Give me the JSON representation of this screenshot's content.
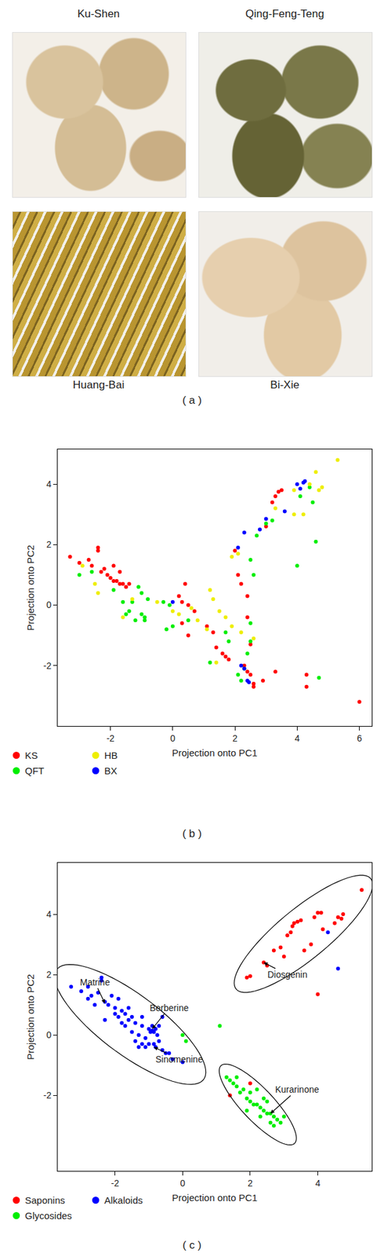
{
  "figure": {
    "photos": [
      {
        "label": "Ku-Shen"
      },
      {
        "label": "Qing-Feng-Teng"
      },
      {
        "label": "Huang-Bai"
      },
      {
        "label": "Bi-Xie"
      }
    ],
    "panel_labels": [
      "( a )",
      "( b )",
      "( c )"
    ]
  },
  "chart_data": [
    {
      "type": "scatter",
      "x_label": "Projection onto PC1",
      "y_label": "Projection onto PC2",
      "xlim": [
        -3.7,
        6.4
      ],
      "ylim": [
        -4.0,
        5.15
      ],
      "xticks": [
        -2,
        0,
        2,
        4,
        6
      ],
      "yticks": [
        -2,
        0,
        2,
        4
      ],
      "grid": false,
      "legend": "bottom",
      "marker": "circle",
      "series": [
        {
          "name": "KS",
          "color": "#ff0000",
          "points": [
            [
              -3.3,
              1.6
            ],
            [
              -3.0,
              1.4
            ],
            [
              -2.7,
              1.5
            ],
            [
              -2.6,
              1.3
            ],
            [
              -2.4,
              1.9
            ],
            [
              -2.4,
              1.8
            ],
            [
              -2.2,
              1.2
            ],
            [
              -2.1,
              1.0
            ],
            [
              -2.0,
              0.9
            ],
            [
              -1.9,
              0.8
            ],
            [
              -1.8,
              0.8
            ],
            [
              -1.7,
              0.7
            ],
            [
              -1.6,
              0.7
            ],
            [
              -1.5,
              0.6
            ],
            [
              -1.9,
              1.3
            ],
            [
              -1.7,
              1.1
            ],
            [
              -1.4,
              0.7
            ],
            [
              -2.3,
              1.1
            ],
            [
              0.4,
              0.7
            ],
            [
              0.2,
              0.3
            ],
            [
              0.5,
              0.0
            ],
            [
              0.7,
              -0.2
            ],
            [
              0.3,
              -0.6
            ],
            [
              0.5,
              -1.0
            ],
            [
              1.1,
              -0.7
            ],
            [
              1.3,
              -0.9
            ],
            [
              1.4,
              -1.4
            ],
            [
              1.6,
              -1.6
            ],
            [
              1.7,
              -1.7
            ],
            [
              1.8,
              -1.8
            ],
            [
              2.1,
              1.0
            ],
            [
              2.2,
              0.7
            ],
            [
              2.4,
              0.3
            ],
            [
              2.4,
              -0.4
            ],
            [
              2.5,
              -1.3
            ],
            [
              2.3,
              -2.0
            ],
            [
              2.4,
              -2.2
            ],
            [
              2.5,
              -2.3
            ],
            [
              2.6,
              -2.6
            ],
            [
              2.6,
              -2.7
            ],
            [
              2.9,
              -2.5
            ],
            [
              3.3,
              -2.2
            ],
            [
              4.3,
              -2.3
            ],
            [
              4.3,
              -2.7
            ],
            [
              6.0,
              -3.2
            ],
            [
              3.0,
              2.6
            ],
            [
              3.2,
              3.4
            ],
            [
              3.3,
              3.6
            ],
            [
              3.4,
              3.75
            ],
            [
              3.5,
              3.8
            ],
            [
              2.0,
              1.8
            ],
            [
              0.3,
              0.1
            ]
          ]
        },
        {
          "name": "QFT",
          "color": "#00ee00",
          "points": [
            [
              -3.0,
              1.0
            ],
            [
              -2.6,
              1.1
            ],
            [
              -1.9,
              0.5
            ],
            [
              -1.6,
              0.1
            ],
            [
              -1.5,
              -0.3
            ],
            [
              -1.3,
              0.1
            ],
            [
              -1.1,
              0.6
            ],
            [
              -1.0,
              0.4
            ],
            [
              -1.0,
              -0.3
            ],
            [
              -0.9,
              -0.4
            ],
            [
              -1.2,
              -0.5
            ],
            [
              -0.9,
              -0.5
            ],
            [
              -1.4,
              -0.2
            ],
            [
              -0.3,
              0.1
            ],
            [
              -0.2,
              -0.8
            ],
            [
              0.0,
              -0.7
            ],
            [
              -0.1,
              0.0
            ],
            [
              0.5,
              -0.5
            ],
            [
              1.2,
              -1.9
            ],
            [
              1.7,
              -0.9
            ],
            [
              1.8,
              -1.2
            ],
            [
              2.1,
              -2.3
            ],
            [
              2.3,
              -2.1
            ],
            [
              2.4,
              -1.6
            ],
            [
              2.5,
              -1.2
            ],
            [
              2.5,
              -0.6
            ],
            [
              2.6,
              1.0
            ],
            [
              2.5,
              1.5
            ],
            [
              2.7,
              2.3
            ],
            [
              3.0,
              2.7
            ],
            [
              3.2,
              2.8
            ],
            [
              4.0,
              1.3
            ],
            [
              4.1,
              3.6
            ],
            [
              4.4,
              3.9
            ],
            [
              4.5,
              3.4
            ],
            [
              4.6,
              2.1
            ],
            [
              4.7,
              -2.4
            ],
            [
              2.2,
              -2.5
            ],
            [
              -0.8,
              0.2
            ]
          ]
        },
        {
          "name": "HB",
          "color": "#eeee00",
          "points": [
            [
              -2.9,
              1.3
            ],
            [
              -2.5,
              0.7
            ],
            [
              -2.4,
              0.4
            ],
            [
              -1.6,
              -0.4
            ],
            [
              -1.3,
              0.2
            ],
            [
              -0.5,
              0.1
            ],
            [
              0.0,
              -0.2
            ],
            [
              0.2,
              -0.3
            ],
            [
              0.6,
              -0.1
            ],
            [
              0.8,
              -0.5
            ],
            [
              1.2,
              0.5
            ],
            [
              1.3,
              0.2
            ],
            [
              1.5,
              -0.2
            ],
            [
              1.7,
              -0.4
            ],
            [
              1.9,
              -0.7
            ],
            [
              2.2,
              -0.9
            ],
            [
              2.6,
              -1.1
            ],
            [
              1.4,
              -1.9
            ],
            [
              1.9,
              1.6
            ],
            [
              2.1,
              1.7
            ],
            [
              3.3,
              3.2
            ],
            [
              3.9,
              3.0
            ],
            [
              4.2,
              3.0
            ],
            [
              4.4,
              4.0
            ],
            [
              4.7,
              3.8
            ],
            [
              4.8,
              3.9
            ],
            [
              4.6,
              4.4
            ],
            [
              5.3,
              4.8
            ],
            [
              3.9,
              3.8
            ],
            [
              1.1,
              -0.8
            ]
          ]
        },
        {
          "name": "BX",
          "color": "#0000ff",
          "points": [
            [
              0.0,
              0.1
            ],
            [
              2.1,
              1.9
            ],
            [
              2.3,
              2.4
            ],
            [
              2.8,
              2.5
            ],
            [
              3.0,
              2.85
            ],
            [
              3.6,
              3.1
            ],
            [
              4.0,
              4.0
            ],
            [
              4.1,
              3.85
            ],
            [
              4.2,
              4.05
            ],
            [
              4.25,
              4.1
            ],
            [
              2.2,
              -2.0
            ],
            [
              2.3,
              -2.1
            ],
            [
              2.4,
              -2.5
            ],
            [
              2.45,
              -2.55
            ]
          ]
        }
      ]
    },
    {
      "type": "scatter",
      "x_label": "Projection onto PC1",
      "y_label": "Projection onto PC2",
      "xlim": [
        -3.7,
        5.6
      ],
      "ylim": [
        -4.5,
        5.7
      ],
      "xticks": [
        -2,
        0,
        2,
        4
      ],
      "yticks": [
        -2,
        0,
        2,
        4
      ],
      "grid": false,
      "legend": "bottom",
      "marker": "circle",
      "series": [
        {
          "name": "Saponins",
          "color": "#ff0000",
          "points": [
            [
              1.9,
              1.9
            ],
            [
              2.0,
              1.95
            ],
            [
              2.4,
              2.4
            ],
            [
              2.5,
              2.3
            ],
            [
              2.7,
              2.8
            ],
            [
              2.9,
              2.9
            ],
            [
              3.0,
              2.6
            ],
            [
              3.1,
              3.3
            ],
            [
              3.2,
              3.4
            ],
            [
              3.25,
              3.6
            ],
            [
              3.3,
              3.7
            ],
            [
              3.4,
              3.75
            ],
            [
              3.5,
              3.8
            ],
            [
              3.6,
              2.8
            ],
            [
              3.8,
              3.0
            ],
            [
              3.9,
              3.9
            ],
            [
              4.0,
              4.05
            ],
            [
              4.1,
              4.05
            ],
            [
              4.15,
              3.5
            ],
            [
              4.5,
              3.7
            ],
            [
              4.6,
              3.9
            ],
            [
              4.7,
              3.85
            ],
            [
              4.75,
              4.0
            ],
            [
              5.3,
              4.8
            ],
            [
              4.0,
              1.35
            ],
            [
              1.4,
              -2.0
            ],
            [
              2.0,
              -1.6
            ]
          ]
        },
        {
          "name": "Glycosides",
          "color": "#00ee00",
          "points": [
            [
              0.0,
              0.0
            ],
            [
              0.1,
              -0.2
            ],
            [
              1.1,
              0.3
            ],
            [
              1.4,
              -1.5
            ],
            [
              1.5,
              -1.6
            ],
            [
              1.6,
              -1.7
            ],
            [
              1.6,
              -1.4
            ],
            [
              1.7,
              -1.9
            ],
            [
              1.8,
              -1.8
            ],
            [
              1.9,
              -2.1
            ],
            [
              2.0,
              -2.2
            ],
            [
              2.0,
              -1.9
            ],
            [
              2.1,
              -2.3
            ],
            [
              2.2,
              -2.3
            ],
            [
              2.2,
              -1.8
            ],
            [
              2.3,
              -2.4
            ],
            [
              2.3,
              -2.7
            ],
            [
              2.4,
              -2.5
            ],
            [
              2.4,
              -2.1
            ],
            [
              2.5,
              -2.6
            ],
            [
              2.5,
              -2.2
            ],
            [
              2.6,
              -2.6
            ],
            [
              2.6,
              -2.9
            ],
            [
              2.7,
              -2.7
            ],
            [
              2.7,
              -3.0
            ],
            [
              2.8,
              -2.8
            ],
            [
              2.9,
              -2.9
            ],
            [
              3.0,
              -2.7
            ],
            [
              1.9,
              -2.5
            ],
            [
              1.3,
              -1.4
            ]
          ]
        },
        {
          "name": "Alkaloids",
          "color": "#0000ff",
          "points": [
            [
              -3.3,
              1.6
            ],
            [
              -3.0,
              1.45
            ],
            [
              -2.8,
              1.2
            ],
            [
              -2.7,
              1.3
            ],
            [
              -2.5,
              1.4
            ],
            [
              -2.4,
              1.9
            ],
            [
              -2.4,
              1.8
            ],
            [
              -2.3,
              1.1
            ],
            [
              -2.2,
              1.0
            ],
            [
              -2.1,
              1.3
            ],
            [
              -2.0,
              0.9
            ],
            [
              -2.0,
              0.7
            ],
            [
              -1.9,
              1.2
            ],
            [
              -1.9,
              0.6
            ],
            [
              -1.8,
              0.8
            ],
            [
              -1.8,
              0.4
            ],
            [
              -1.7,
              0.7
            ],
            [
              -1.7,
              0.3
            ],
            [
              -1.6,
              0.9
            ],
            [
              -1.6,
              0.5
            ],
            [
              -1.5,
              0.6
            ],
            [
              -1.5,
              0.1
            ],
            [
              -1.4,
              0.4
            ],
            [
              -1.4,
              -0.2
            ],
            [
              -1.3,
              0.0
            ],
            [
              -1.3,
              -0.4
            ],
            [
              -1.2,
              -0.3
            ],
            [
              -1.2,
              0.3
            ],
            [
              -1.1,
              -0.1
            ],
            [
              -1.1,
              -0.4
            ],
            [
              -1.0,
              -0.3
            ],
            [
              -1.0,
              0.2
            ],
            [
              -0.95,
              0.1
            ],
            [
              -0.9,
              0.15
            ],
            [
              -0.9,
              0.3
            ],
            [
              -0.85,
              0.1
            ],
            [
              -0.85,
              -0.3
            ],
            [
              -0.8,
              0.2
            ],
            [
              -0.8,
              -0.4
            ],
            [
              -0.75,
              0.0
            ],
            [
              -0.7,
              0.3
            ],
            [
              -0.7,
              -0.2
            ],
            [
              -0.6,
              -0.5
            ],
            [
              -0.5,
              -0.6
            ],
            [
              -0.4,
              -0.6
            ],
            [
              -0.3,
              -0.8
            ],
            [
              -2.6,
              1.0
            ],
            [
              -2.3,
              0.5
            ],
            [
              -2.8,
              1.6
            ],
            [
              -1.2,
              0.6
            ],
            [
              -0.6,
              0.6
            ],
            [
              0.0,
              -0.9
            ],
            [
              4.3,
              3.4
            ],
            [
              4.6,
              2.2
            ]
          ]
        }
      ],
      "annotations": [
        {
          "text": "Matrine",
          "x": -2.3,
          "y": 1.05,
          "text_x": -2.6,
          "text_y": 1.75
        },
        {
          "text": "Berberine",
          "x": -0.9,
          "y": 0.2,
          "text_x": -0.4,
          "text_y": 0.9
        },
        {
          "text": "Sinomenine",
          "x": -0.85,
          "y": -0.4,
          "text_x": -0.1,
          "text_y": -0.8
        },
        {
          "text": "Diosgenin",
          "x": 2.4,
          "y": 2.4,
          "text_x": 3.1,
          "text_y": 2.0
        },
        {
          "text": "Kurarinone",
          "x": 2.6,
          "y": -2.6,
          "text_x": 3.4,
          "text_y": -1.8
        }
      ],
      "ellipses": [
        {
          "major": [
            [
              -3.7,
              2.2
            ],
            [
              0.6,
              -1.5
            ]
          ],
          "minor": 0.95
        },
        {
          "major": [
            [
              1.6,
              1.5
            ],
            [
              5.55,
              5.2
            ]
          ],
          "minor": 0.8
        },
        {
          "major": [
            [
              1.15,
              -1.0
            ],
            [
              3.3,
              -3.6
            ]
          ],
          "minor": 0.5
        }
      ]
    }
  ]
}
